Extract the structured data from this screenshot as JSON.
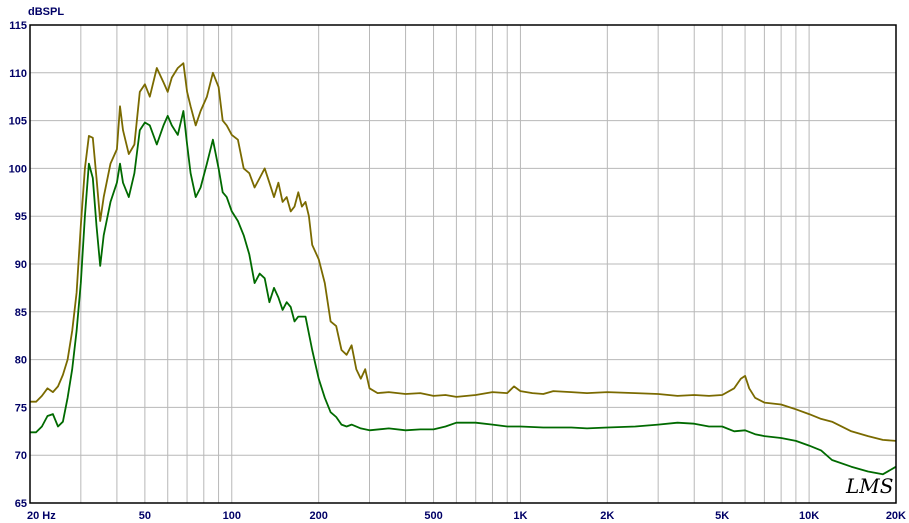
{
  "chart_data": {
    "type": "line",
    "ylabel": "dBSPL",
    "x_scale": "log",
    "xlim": [
      20,
      20000
    ],
    "ylim": [
      65,
      115
    ],
    "grid": true,
    "x_ticks": [
      {
        "value": 20,
        "label": "20  Hz"
      },
      {
        "value": 50,
        "label": "50"
      },
      {
        "value": 100,
        "label": "100"
      },
      {
        "value": 200,
        "label": "200"
      },
      {
        "value": 500,
        "label": "500"
      },
      {
        "value": 1000,
        "label": "1K"
      },
      {
        "value": 2000,
        "label": "2K"
      },
      {
        "value": 5000,
        "label": "5K"
      },
      {
        "value": 10000,
        "label": "10K"
      },
      {
        "value": 20000,
        "label": "20K"
      }
    ],
    "y_ticks": [
      65,
      70,
      75,
      80,
      85,
      90,
      95,
      100,
      105,
      110,
      115
    ],
    "logo": "LMS",
    "colors": {
      "series_upper": "#7a6a00",
      "series_lower": "#006a00",
      "grid": "#b8b8b8",
      "labels": "#000066"
    },
    "series": [
      {
        "color": "#7a6a00",
        "points": [
          [
            20,
            75.6
          ],
          [
            21,
            75.6
          ],
          [
            22,
            76.2
          ],
          [
            23,
            77.0
          ],
          [
            24,
            76.6
          ],
          [
            25,
            77.2
          ],
          [
            26,
            78.4
          ],
          [
            27,
            80.0
          ],
          [
            28,
            83.0
          ],
          [
            29,
            87.0
          ],
          [
            30,
            94.0
          ],
          [
            31,
            100.0
          ],
          [
            32,
            103.4
          ],
          [
            33,
            103.2
          ],
          [
            34,
            99.0
          ],
          [
            35,
            94.5
          ],
          [
            36,
            97.0
          ],
          [
            38,
            100.5
          ],
          [
            40,
            102.0
          ],
          [
            41,
            106.5
          ],
          [
            42,
            104.0
          ],
          [
            44,
            101.5
          ],
          [
            46,
            102.5
          ],
          [
            48,
            108.0
          ],
          [
            50,
            108.8
          ],
          [
            52,
            107.5
          ],
          [
            55,
            110.5
          ],
          [
            58,
            109.0
          ],
          [
            60,
            108.0
          ],
          [
            62,
            109.5
          ],
          [
            65,
            110.5
          ],
          [
            68,
            111.0
          ],
          [
            70,
            108.0
          ],
          [
            72,
            106.5
          ],
          [
            75,
            104.5
          ],
          [
            78,
            106.0
          ],
          [
            82,
            107.5
          ],
          [
            86,
            110.0
          ],
          [
            90,
            108.5
          ],
          [
            93,
            105.0
          ],
          [
            96,
            104.5
          ],
          [
            100,
            103.5
          ],
          [
            105,
            103.0
          ],
          [
            110,
            100.0
          ],
          [
            115,
            99.5
          ],
          [
            120,
            98.0
          ],
          [
            125,
            99.0
          ],
          [
            130,
            100.0
          ],
          [
            135,
            98.5
          ],
          [
            140,
            97.0
          ],
          [
            145,
            98.5
          ],
          [
            150,
            96.5
          ],
          [
            155,
            97.0
          ],
          [
            160,
            95.5
          ],
          [
            165,
            96.0
          ],
          [
            170,
            97.5
          ],
          [
            175,
            96.0
          ],
          [
            180,
            96.5
          ],
          [
            185,
            95.0
          ],
          [
            190,
            92.0
          ],
          [
            200,
            90.5
          ],
          [
            210,
            88.0
          ],
          [
            220,
            84.0
          ],
          [
            230,
            83.5
          ],
          [
            240,
            81.0
          ],
          [
            250,
            80.5
          ],
          [
            260,
            81.5
          ],
          [
            270,
            79.0
          ],
          [
            280,
            78.0
          ],
          [
            290,
            79.0
          ],
          [
            300,
            77.0
          ],
          [
            320,
            76.5
          ],
          [
            350,
            76.6
          ],
          [
            400,
            76.4
          ],
          [
            450,
            76.5
          ],
          [
            500,
            76.2
          ],
          [
            550,
            76.3
          ],
          [
            600,
            76.1
          ],
          [
            700,
            76.3
          ],
          [
            800,
            76.6
          ],
          [
            900,
            76.5
          ],
          [
            950,
            77.2
          ],
          [
            1000,
            76.7
          ],
          [
            1100,
            76.5
          ],
          [
            1200,
            76.4
          ],
          [
            1300,
            76.7
          ],
          [
            1500,
            76.6
          ],
          [
            1700,
            76.5
          ],
          [
            2000,
            76.6
          ],
          [
            2500,
            76.5
          ],
          [
            3000,
            76.4
          ],
          [
            3500,
            76.2
          ],
          [
            4000,
            76.3
          ],
          [
            4500,
            76.2
          ],
          [
            5000,
            76.3
          ],
          [
            5500,
            77.0
          ],
          [
            5800,
            78.0
          ],
          [
            6000,
            78.3
          ],
          [
            6200,
            77.0
          ],
          [
            6500,
            76.0
          ],
          [
            7000,
            75.5
          ],
          [
            8000,
            75.3
          ],
          [
            9000,
            74.8
          ],
          [
            10000,
            74.3
          ],
          [
            11000,
            73.8
          ],
          [
            12000,
            73.5
          ],
          [
            14000,
            72.5
          ],
          [
            16000,
            72.0
          ],
          [
            18000,
            71.6
          ],
          [
            20000,
            71.5
          ]
        ]
      },
      {
        "color": "#006a00",
        "points": [
          [
            20,
            72.4
          ],
          [
            21,
            72.4
          ],
          [
            22,
            73.0
          ],
          [
            23,
            74.1
          ],
          [
            24,
            74.3
          ],
          [
            25,
            73.0
          ],
          [
            26,
            73.5
          ],
          [
            27,
            76.0
          ],
          [
            28,
            79.0
          ],
          [
            29,
            83.0
          ],
          [
            30,
            88.0
          ],
          [
            31,
            95.0
          ],
          [
            32,
            100.5
          ],
          [
            33,
            99.0
          ],
          [
            34,
            94.0
          ],
          [
            35,
            89.8
          ],
          [
            36,
            93.0
          ],
          [
            38,
            96.5
          ],
          [
            40,
            98.5
          ],
          [
            41,
            100.5
          ],
          [
            42,
            98.5
          ],
          [
            44,
            97.0
          ],
          [
            46,
            99.5
          ],
          [
            48,
            104.0
          ],
          [
            50,
            104.8
          ],
          [
            52,
            104.5
          ],
          [
            55,
            102.5
          ],
          [
            58,
            104.5
          ],
          [
            60,
            105.5
          ],
          [
            62,
            104.5
          ],
          [
            65,
            103.5
          ],
          [
            68,
            106.0
          ],
          [
            70,
            102.5
          ],
          [
            72,
            99.5
          ],
          [
            75,
            97.0
          ],
          [
            78,
            98.0
          ],
          [
            82,
            100.5
          ],
          [
            86,
            103.0
          ],
          [
            90,
            100.0
          ],
          [
            93,
            97.5
          ],
          [
            96,
            97.0
          ],
          [
            100,
            95.5
          ],
          [
            105,
            94.5
          ],
          [
            110,
            93.0
          ],
          [
            115,
            91.0
          ],
          [
            120,
            88.0
          ],
          [
            125,
            89.0
          ],
          [
            130,
            88.5
          ],
          [
            135,
            86.0
          ],
          [
            140,
            87.5
          ],
          [
            145,
            86.5
          ],
          [
            150,
            85.2
          ],
          [
            155,
            86.0
          ],
          [
            160,
            85.5
          ],
          [
            165,
            84.0
          ],
          [
            170,
            84.5
          ],
          [
            180,
            84.5
          ],
          [
            190,
            81.0
          ],
          [
            200,
            78.0
          ],
          [
            210,
            76.0
          ],
          [
            220,
            74.5
          ],
          [
            230,
            74.0
          ],
          [
            240,
            73.2
          ],
          [
            250,
            73.0
          ],
          [
            260,
            73.2
          ],
          [
            280,
            72.8
          ],
          [
            300,
            72.6
          ],
          [
            350,
            72.8
          ],
          [
            400,
            72.6
          ],
          [
            450,
            72.7
          ],
          [
            500,
            72.7
          ],
          [
            550,
            73.0
          ],
          [
            600,
            73.4
          ],
          [
            700,
            73.4
          ],
          [
            800,
            73.2
          ],
          [
            900,
            73.0
          ],
          [
            1000,
            73.0
          ],
          [
            1200,
            72.9
          ],
          [
            1500,
            72.9
          ],
          [
            1700,
            72.8
          ],
          [
            2000,
            72.9
          ],
          [
            2500,
            73.0
          ],
          [
            3000,
            73.2
          ],
          [
            3500,
            73.4
          ],
          [
            4000,
            73.3
          ],
          [
            4500,
            73.0
          ],
          [
            5000,
            73.0
          ],
          [
            5500,
            72.5
          ],
          [
            6000,
            72.6
          ],
          [
            6500,
            72.2
          ],
          [
            7000,
            72.0
          ],
          [
            8000,
            71.8
          ],
          [
            9000,
            71.5
          ],
          [
            10000,
            71.0
          ],
          [
            11000,
            70.5
          ],
          [
            12000,
            69.5
          ],
          [
            14000,
            68.8
          ],
          [
            16000,
            68.3
          ],
          [
            18000,
            68.0
          ],
          [
            20000,
            68.8
          ]
        ]
      }
    ]
  }
}
